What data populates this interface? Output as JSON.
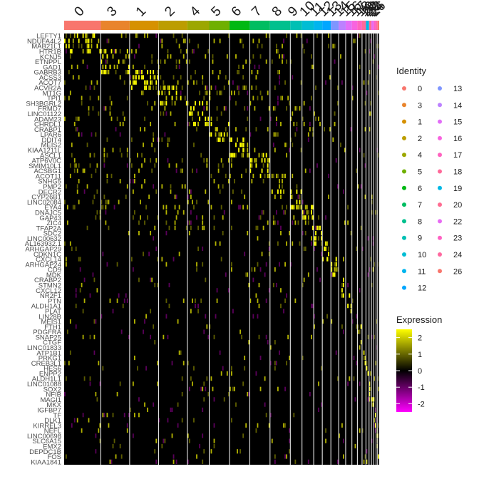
{
  "chart_data": {
    "type": "heatmap",
    "title": "",
    "xlabel": "",
    "ylabel": "",
    "cluster_order": [
      "0",
      "3",
      "1",
      "2",
      "4",
      "5",
      "6",
      "7",
      "8",
      "9",
      "10",
      "11",
      "12",
      "13",
      "14",
      "15",
      "16",
      "17",
      "18",
      "19",
      "20",
      "22",
      "23",
      "24",
      "26"
    ],
    "cluster_widths": [
      47,
      37,
      37,
      37,
      28,
      26,
      26,
      26,
      26,
      15,
      15,
      11,
      11,
      10,
      9,
      8,
      7,
      6,
      5,
      4,
      3,
      3,
      3,
      2,
      2
    ],
    "cluster_colors": [
      "#F8766D",
      "#E9842C",
      "#D69100",
      "#BC9D00",
      "#9CA700",
      "#6FB000",
      "#00B813",
      "#00BD61",
      "#00C08E",
      "#00C0B4",
      "#00BDD4",
      "#00B5EE",
      "#00A7FF",
      "#7F96FF",
      "#BC81FF",
      "#E26EF7",
      "#F863DF",
      "#FF62BF",
      "#FF6A9A",
      "#00B8E5",
      "#FF6C91",
      "#E76BF3",
      "#FF61C3",
      "#FF689F",
      "#F8766D"
    ],
    "genes": [
      "LEFTY1",
      "NDUFA4L2",
      "MAB21L1",
      "HTR1B",
      "KCNJ5",
      "ETNPPL",
      "GAD1",
      "GABRB3",
      "ACSS3",
      "ACOT7",
      "ACVR2A",
      "MT1G",
      "TPI1",
      "SH3BGRL2",
      "FRMD7",
      "LINC01122",
      "ADAM23",
      "CHRDL1",
      "CRABP1",
      "LPAR6",
      "DDIT4",
      "MEIS2",
      "KIAA1211L",
      "ASCL1",
      "ATP6V0C",
      "SMIM10L1",
      "ACSBG1",
      "ACOT11",
      "SNHG5",
      "PMP2",
      "DECR2",
      "CYP26B1",
      "LINC02084",
      "EYA4",
      "DNAJC5",
      "GAP43",
      "ZIC4",
      "TFAP2A",
      "SDC2",
      "LINC00632",
      "AL163932.1",
      "ARHGAP29",
      "CDKN1C",
      "CXCL14",
      "ARHGAP24",
      "CD9",
      "MDK",
      "CRABP2",
      "STMN2",
      "CXCL12",
      "NR2F1",
      "PTN",
      "ALDH1A1",
      "PLAT",
      "LIN28B",
      "MEIS1",
      "FTH1",
      "PDGFRA",
      "SNAP25",
      "CTGF",
      "LINC01833",
      "ATP1B1",
      "PRKG1",
      "CREB3L1",
      "HES6",
      "ENPP2",
      "ALDH1L1",
      "LINC01088",
      "SOX2",
      "NFIB",
      "MAGI1",
      "MKX",
      "IGFBP7",
      "TF",
      "DLK1",
      "KIRREL3",
      "NEFL",
      "LINC00698",
      "SLC6A15",
      "EMX2",
      "DEPDC1B",
      "FOS",
      "KIAA1841"
    ],
    "legend": {
      "identity_title": "Identity",
      "identity_entries": [
        "0",
        "3",
        "1",
        "2",
        "4",
        "5",
        "6",
        "7",
        "8",
        "9",
        "10",
        "11",
        "12",
        "13",
        "14",
        "15",
        "16",
        "17",
        "18",
        "19",
        "20",
        "22",
        "23",
        "24",
        "26"
      ],
      "expression_title": "Expression",
      "expression_breaks": [
        2,
        1,
        0,
        -1,
        -2
      ],
      "expression_range": [
        -2.5,
        2.5
      ],
      "expression_colors": {
        "low": "#FF00FF",
        "mid": "#000000",
        "high": "#FFFF00"
      }
    },
    "x_tick_labels": [
      "0",
      "3",
      "1",
      "2",
      "4",
      "5",
      "6",
      "7",
      "8",
      "9",
      "10",
      "11",
      "12",
      "13",
      "14",
      "15",
      "16",
      "17",
      "18",
      "19",
      "20",
      "22",
      "23",
      "24",
      "26"
    ]
  }
}
